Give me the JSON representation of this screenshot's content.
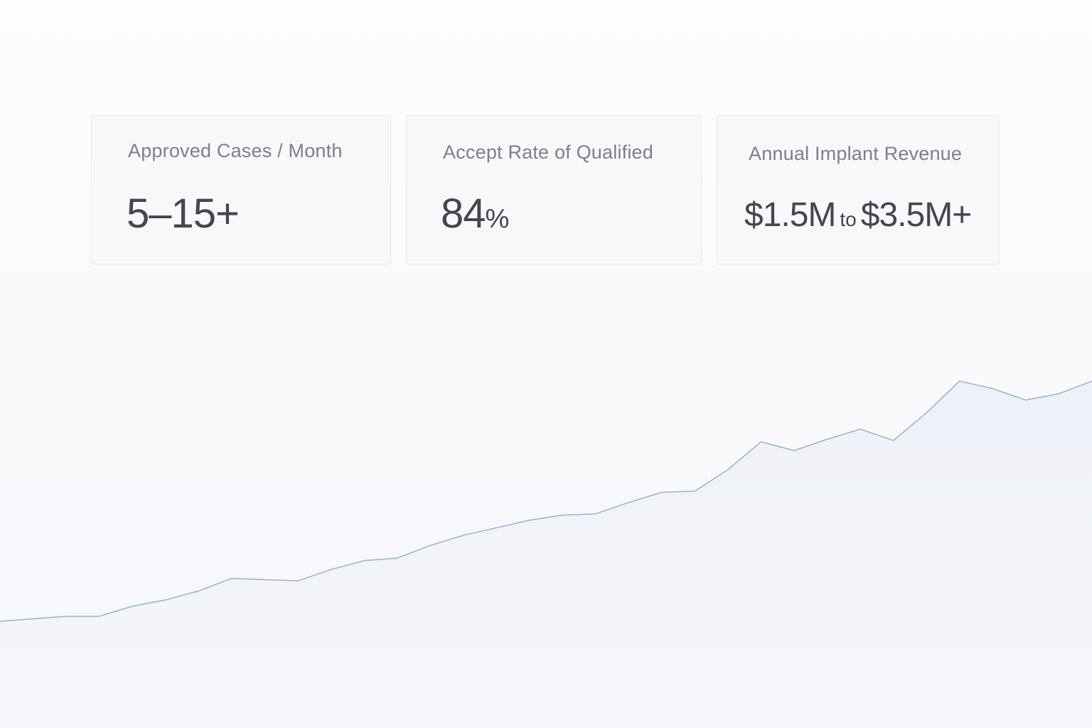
{
  "stats": [
    {
      "label": "Approved Cases / Month",
      "value": "5–15+"
    },
    {
      "label": "Accept Rate of Qualified",
      "value_number": "84",
      "value_unit": "%"
    },
    {
      "label": "Annual Implant Revenue",
      "value_low": "$1.5M",
      "value_connector": "to",
      "value_high": "$3.5M+"
    }
  ],
  "chart_data": {
    "type": "area",
    "x": [
      0,
      1,
      2,
      3,
      4,
      5,
      6,
      7,
      8,
      9,
      10,
      11,
      12,
      13,
      14,
      15,
      16,
      17,
      18,
      19,
      20,
      21,
      22,
      23,
      24,
      25,
      26,
      27,
      28,
      29,
      30,
      31,
      32,
      33
    ],
    "values": [
      10,
      12,
      14,
      14,
      22,
      27,
      34,
      44,
      43,
      42,
      51,
      58,
      60,
      70,
      78,
      84,
      90,
      94,
      95,
      104,
      112,
      113,
      130,
      152,
      145,
      154,
      162,
      153,
      175,
      200,
      194,
      185,
      190,
      200
    ],
    "line_color": "#9db5d6",
    "fill_color": "#eef1f7",
    "grid": false,
    "legend": "none"
  }
}
